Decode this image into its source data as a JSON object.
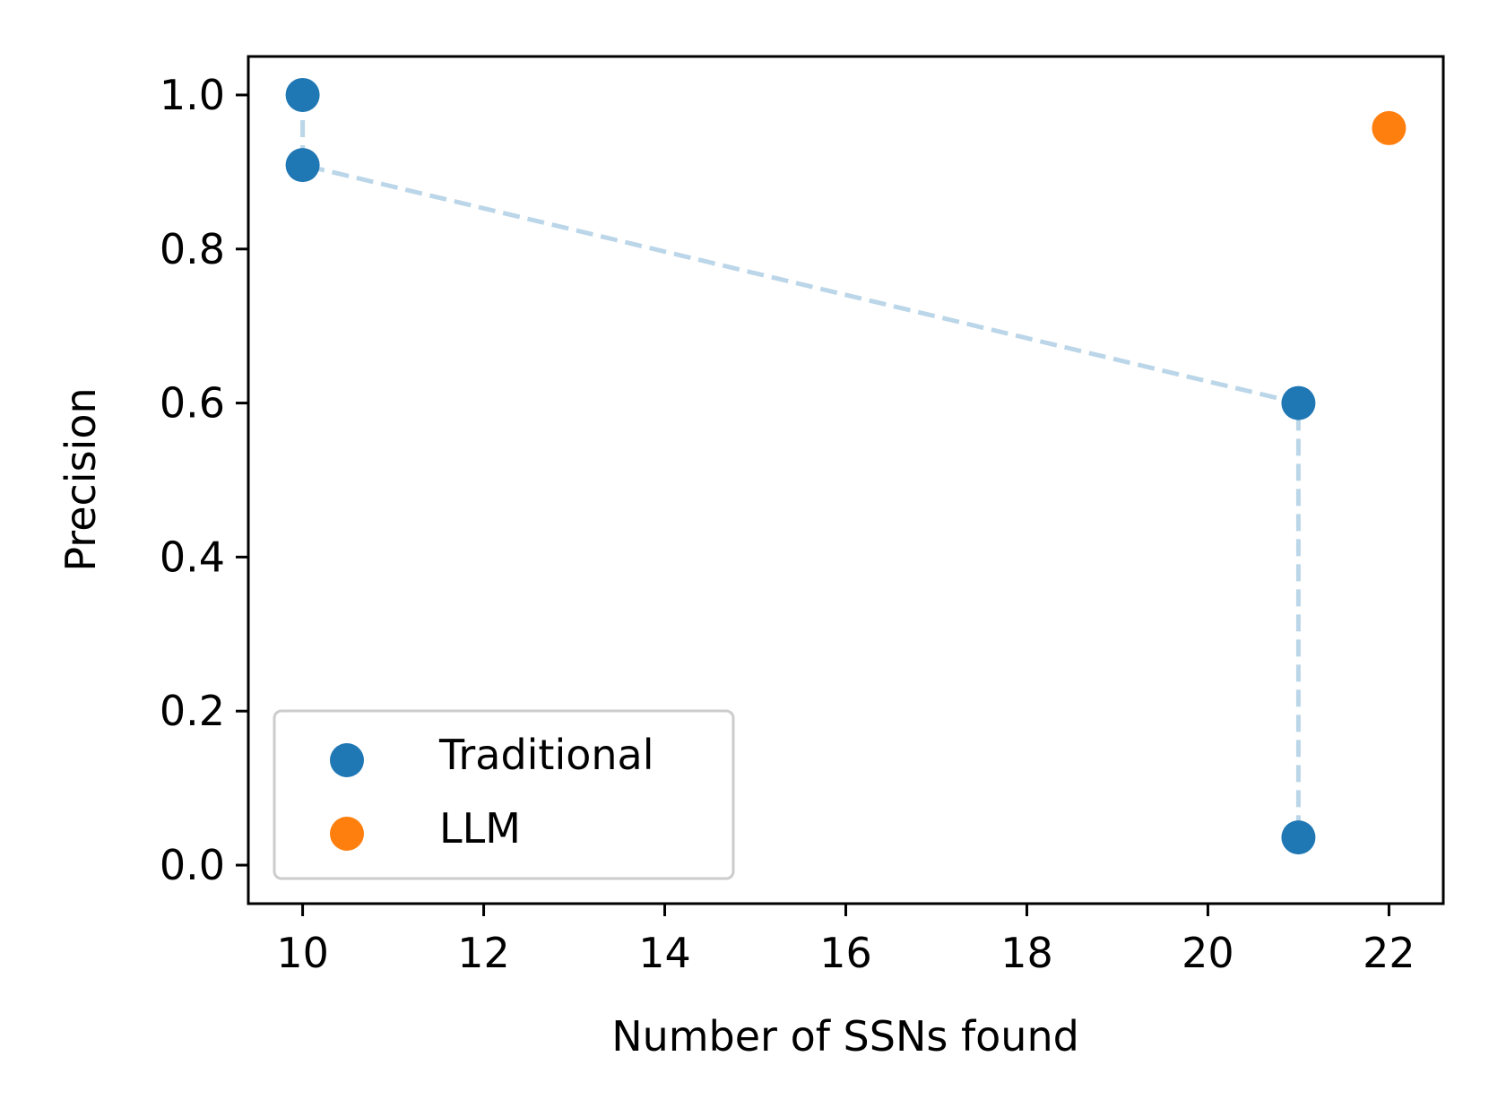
{
  "chart_data": {
    "type": "scatter",
    "title": "",
    "xlabel": "Number of SSNs found",
    "ylabel": "Precision",
    "xlim": [
      9.4,
      22.6
    ],
    "ylim": [
      -0.05,
      1.05
    ],
    "xticks": [
      10,
      12,
      14,
      16,
      18,
      20,
      22
    ],
    "yticks": [
      0.0,
      0.2,
      0.4,
      0.6,
      0.8,
      1.0
    ],
    "xtick_labels": [
      "10",
      "12",
      "14",
      "16",
      "18",
      "20",
      "22"
    ],
    "ytick_labels": [
      "0.0",
      "0.2",
      "0.4",
      "0.6",
      "0.8",
      "1.0"
    ],
    "grid": false,
    "legend_position": "lower-left",
    "series": [
      {
        "name": "Traditional",
        "color": "#1f77b4",
        "x": [
          10,
          10,
          21,
          21
        ],
        "y": [
          1.0,
          0.909,
          0.6,
          0.036
        ]
      },
      {
        "name": "LLM",
        "color": "#ff7f0e",
        "x": [
          22
        ],
        "y": [
          0.957
        ]
      }
    ],
    "connector": {
      "series": "Traditional",
      "style": "dashed",
      "color": "#1f77b4",
      "opacity": 0.3
    }
  }
}
